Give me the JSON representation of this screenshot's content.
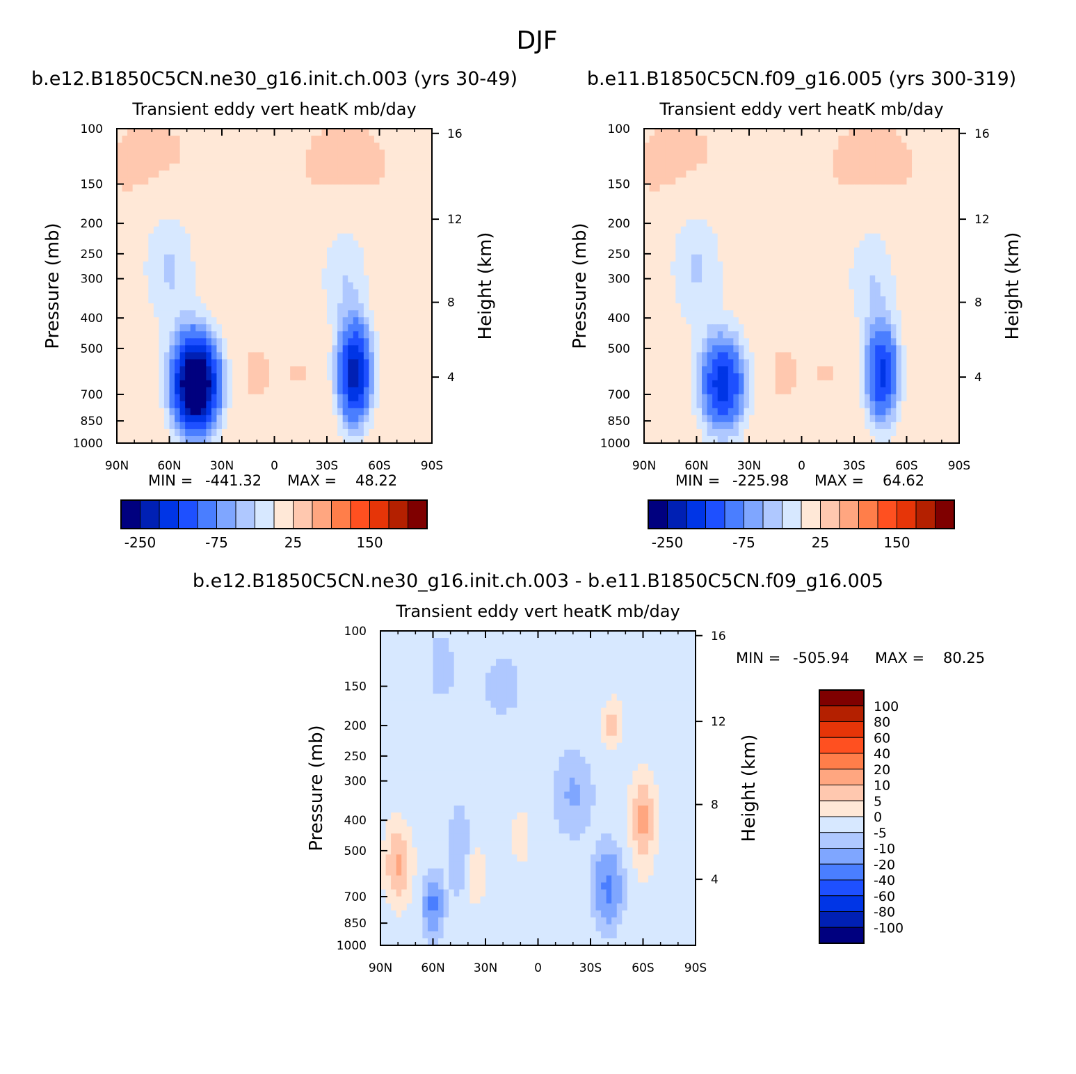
{
  "figure": {
    "title": "DJF"
  },
  "colors": {
    "levels_main": [
      "#00007f",
      "#0020b4",
      "#0035e6",
      "#1e50ff",
      "#4a7eff",
      "#7fa6ff",
      "#afc8ff",
      "#d7e8ff",
      "#ffe8d7",
      "#ffc8af",
      "#ffa680",
      "#ff7e4a",
      "#ff5020",
      "#e63508",
      "#b42000",
      "#7f0000"
    ],
    "levels_diff": [
      "#7f0000",
      "#b42000",
      "#e63508",
      "#ff5020",
      "#ff7e4a",
      "#ffa680",
      "#ffc8af",
      "#ffe8d7",
      "#d7e8ff",
      "#afc8ff",
      "#7fa6ff",
      "#4a7eff",
      "#1e50ff",
      "#0035e6",
      "#0020b4",
      "#00007f"
    ]
  },
  "chart_data": [
    {
      "type": "heatmap",
      "title": "b.e12.B1850C5CN.ne30_g16.init.ch.003 (yrs 30-49)",
      "subtitle": "Transient eddy vert heatK mb/day",
      "ylabel": "Pressure (mb)",
      "y2label": "Height (km)",
      "xticks": [
        "90N",
        "60N",
        "30N",
        "0",
        "30S",
        "60S",
        "90S"
      ],
      "xlim": [
        90,
        -90
      ],
      "yticks": [
        100,
        150,
        200,
        250,
        300,
        400,
        500,
        700,
        850,
        1000
      ],
      "ylim": [
        1000,
        100
      ],
      "yscale": "log",
      "y2ticks": [
        16,
        12,
        8,
        4
      ],
      "min_label": "MIN =",
      "min_value": "-441.32",
      "max_label": "MAX =",
      "max_value": "48.22",
      "colorbar_labels": [
        {
          "index": 1,
          "text": "-250"
        },
        {
          "index": 5,
          "text": "-75"
        },
        {
          "index": 9,
          "text": "25"
        },
        {
          "index": 13,
          "text": "150"
        }
      ],
      "colorbar_orientation": "horizontal",
      "features": [
        {
          "lat": 45,
          "p": 650,
          "value": -441.32,
          "sx": 12,
          "sp": 0.33
        },
        {
          "lat": -46,
          "p": 600,
          "value": -280,
          "sx": 9,
          "sp": 0.34
        },
        {
          "lat": 60,
          "p": 280,
          "value": -50,
          "sx": 15,
          "sp": 0.45
        },
        {
          "lat": -40,
          "p": 300,
          "value": -45,
          "sx": 14,
          "sp": 0.4
        },
        {
          "lat": 10,
          "p": 600,
          "value": 8,
          "sx": 7,
          "sp": 0.17
        },
        {
          "lat": -15,
          "p": 600,
          "value": 6,
          "sx": 6,
          "sp": 0.08
        },
        {
          "lat": 70,
          "p": 130,
          "value": 7,
          "sx": 25,
          "sp": 0.32
        },
        {
          "lat": -40,
          "p": 130,
          "value": 7,
          "sx": 25,
          "sp": 0.32
        }
      ]
    },
    {
      "type": "heatmap",
      "title": "b.e11.B1850C5CN.f09_g16.005 (yrs 300-319)",
      "subtitle": "Transient eddy vert heatK mb/day",
      "ylabel": "Pressure (mb)",
      "y2label": "Height (km)",
      "xticks": [
        "90N",
        "60N",
        "30N",
        "0",
        "30S",
        "60S",
        "90S"
      ],
      "xlim": [
        90,
        -90
      ],
      "yticks": [
        100,
        150,
        200,
        250,
        300,
        400,
        500,
        700,
        850,
        1000
      ],
      "ylim": [
        1000,
        100
      ],
      "yscale": "log",
      "y2ticks": [
        16,
        12,
        8,
        4
      ],
      "min_label": "MIN =",
      "min_value": "-225.98",
      "max_label": "MAX =",
      "max_value": "64.62",
      "colorbar_labels": [
        {
          "index": 1,
          "text": "-250"
        },
        {
          "index": 5,
          "text": "-75"
        },
        {
          "index": 9,
          "text": "25"
        },
        {
          "index": 13,
          "text": "150"
        }
      ],
      "colorbar_orientation": "horizontal",
      "features": [
        {
          "lat": 45,
          "p": 650,
          "value": -225.98,
          "sx": 12,
          "sp": 0.33
        },
        {
          "lat": -46,
          "p": 600,
          "value": -210,
          "sx": 9,
          "sp": 0.34
        },
        {
          "lat": 60,
          "p": 280,
          "value": -50,
          "sx": 15,
          "sp": 0.45
        },
        {
          "lat": -40,
          "p": 300,
          "value": -45,
          "sx": 14,
          "sp": 0.4
        },
        {
          "lat": 10,
          "p": 600,
          "value": 8,
          "sx": 7,
          "sp": 0.17
        },
        {
          "lat": -15,
          "p": 600,
          "value": 6,
          "sx": 6,
          "sp": 0.08
        },
        {
          "lat": 70,
          "p": 130,
          "value": 7,
          "sx": 25,
          "sp": 0.32
        },
        {
          "lat": -40,
          "p": 130,
          "value": 7,
          "sx": 25,
          "sp": 0.32
        }
      ]
    },
    {
      "type": "heatmap",
      "title": "b.e12.B1850C5CN.ne30_g16.init.ch.003 - b.e11.B1850C5CN.f09_g16.005",
      "subtitle": "Transient eddy vert heatK mb/day",
      "ylabel": "Pressure (mb)",
      "y2label": "Height (km)",
      "xticks": [
        "90N",
        "60N",
        "30N",
        "0",
        "30S",
        "60S",
        "90S"
      ],
      "xlim": [
        90,
        -90
      ],
      "yticks": [
        100,
        150,
        200,
        250,
        300,
        400,
        500,
        700,
        850,
        1000
      ],
      "ylim": [
        1000,
        100
      ],
      "yscale": "log",
      "y2ticks": [
        16,
        12,
        8,
        4
      ],
      "min_label": "MIN =",
      "min_value": "-505.94",
      "max_label": "MAX =",
      "max_value": "80.25",
      "colorbar_labels": [
        "100",
        "80",
        "60",
        "40",
        "20",
        "10",
        "5",
        "0",
        "-5",
        "-10",
        "-20",
        "-40",
        "-60",
        "-80",
        "-100"
      ],
      "colorbar_orientation": "vertical",
      "features": [
        {
          "lat": 80,
          "p": 550,
          "value": 14,
          "sx": 8,
          "sp": 0.3
        },
        {
          "lat": 60,
          "p": 750,
          "value": -20,
          "sx": 5,
          "sp": 0.2
        },
        {
          "lat": 45,
          "p": 500,
          "value": -7,
          "sx": 6,
          "sp": 0.3
        },
        {
          "lat": 35,
          "p": 600,
          "value": 7,
          "sx": 6,
          "sp": 0.25
        },
        {
          "lat": 10,
          "p": 450,
          "value": 4,
          "sx": 10,
          "sp": 0.35
        },
        {
          "lat": -20,
          "p": 330,
          "value": -8,
          "sx": 10,
          "sp": 0.28
        },
        {
          "lat": -40,
          "p": 650,
          "value": -20,
          "sx": 7,
          "sp": 0.25
        },
        {
          "lat": -60,
          "p": 400,
          "value": 15,
          "sx": 7,
          "sp": 0.35
        },
        {
          "lat": -42,
          "p": 200,
          "value": 12,
          "sx": 5,
          "sp": 0.15
        },
        {
          "lat": 20,
          "p": 150,
          "value": -3,
          "sx": 15,
          "sp": 0.3
        },
        {
          "lat": -50,
          "p": 130,
          "value": 3,
          "sx": 15,
          "sp": 0.3
        },
        {
          "lat": 55,
          "p": 130,
          "value": -3,
          "sx": 10,
          "sp": 0.35
        }
      ]
    }
  ]
}
